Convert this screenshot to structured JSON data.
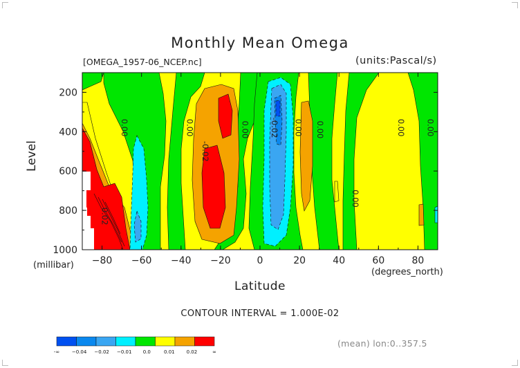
{
  "title": "Monthly Mean Omega",
  "file_label": "[OMEGA_1957-06_NCEP.nc]",
  "units_label": "(units:Pascal/s)",
  "contour_interval": "CONTOUR INTERVAL = 1.000E-02",
  "mean_label": "(mean) lon:0..357.5",
  "colors": {
    "lt_-0.04": "#0050f0",
    "-0.04_-0.03": "#0a88ee",
    "-0.03_-0.02": "#3aa6f2",
    "-0.02_-0.01": "#00f0ff",
    "-0.01_0.00": "#00e600",
    "0.00_0.01": "#ffff00",
    "0.01_0.02": "#f5a300",
    "gt_0.02": "#ff0000"
  },
  "chart_data": {
    "type": "filled-contour",
    "xlabel": "Latitude",
    "xunit": "(degrees_north)",
    "ylabel": "Level",
    "yunit": "(millibar)",
    "xlim": [
      -90,
      90
    ],
    "ylim": [
      1000,
      100
    ],
    "xticks": [
      "-80",
      "-60",
      "-40",
      "-20",
      "0",
      "20",
      "40",
      "60",
      "80"
    ],
    "yticks": [
      "200",
      "400",
      "600",
      "800",
      "1000"
    ],
    "contour_labels": [
      {
        "text": "0.00",
        "lat": -70,
        "level": 380
      },
      {
        "text": "0.00",
        "lat": -37,
        "level": 380
      },
      {
        "text": "-0.02",
        "lat": -29,
        "level": 500
      },
      {
        "text": "0.00",
        "lat": -9,
        "level": 390
      },
      {
        "text": "-0.02",
        "lat": 6,
        "level": 380
      },
      {
        "text": "0.00",
        "lat": 18,
        "level": 380
      },
      {
        "text": "0.00",
        "lat": 29,
        "level": 390
      },
      {
        "text": "0.00",
        "lat": 47,
        "level": 740
      },
      {
        "text": "0.00",
        "lat": 70,
        "level": 380
      },
      {
        "text": "0.00",
        "lat": 85,
        "level": 380
      },
      {
        "text": "0.02",
        "lat": -80,
        "level": 830
      }
    ],
    "colorbar": {
      "labels": [
        "-∞",
        "−0.04",
        "−0.02",
        "−0.01",
        "0.0",
        "0.01",
        "0.02",
        "∞"
      ]
    }
  }
}
